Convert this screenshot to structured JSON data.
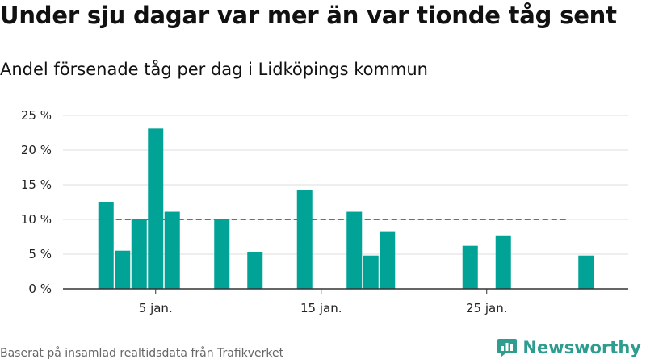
{
  "header": {
    "title": "Under sju dagar var mer än var tionde tåg sent",
    "subtitle": "Andel försenade tåg per dag i Lidköpings kommun"
  },
  "footer": {
    "source": "Baserat på insamlad realtidsdata från Trafikverket",
    "brand": "Newsworthy"
  },
  "colors": {
    "bar": "#00a396",
    "reference_line": "#6f6f6f",
    "grid": "#dedede",
    "axis": "#333333",
    "brand": "#2e9c8e"
  },
  "icons": {
    "brand_logo": "newsworthy-logo-icon"
  },
  "chart_data": {
    "type": "bar",
    "title": "Andel försenade tåg per dag i Lidköpings kommun",
    "xlabel": "",
    "ylabel": "",
    "unit": "%",
    "x_domain": [
      1,
      31
    ],
    "ylim": [
      0,
      25
    ],
    "yticks": [
      0,
      5,
      10,
      15,
      20,
      25
    ],
    "ytick_labels": [
      "0 %",
      "5 %",
      "10 %",
      "15 %",
      "20 %",
      "25 %"
    ],
    "xticks": [
      5,
      15,
      25
    ],
    "xtick_labels": [
      "5 jan.",
      "15 jan.",
      "25 jan."
    ],
    "grid": true,
    "reference_line": {
      "y": 10,
      "x_start": 2,
      "x_end": 28,
      "style": "dashed"
    },
    "points": [
      {
        "day": 2,
        "value": 12.5
      },
      {
        "day": 3,
        "value": 5.5
      },
      {
        "day": 4,
        "value": 10.0
      },
      {
        "day": 5,
        "value": 23.1
      },
      {
        "day": 6,
        "value": 11.1
      },
      {
        "day": 9,
        "value": 10.0
      },
      {
        "day": 11,
        "value": 5.3
      },
      {
        "day": 14,
        "value": 14.3
      },
      {
        "day": 17,
        "value": 11.1
      },
      {
        "day": 18,
        "value": 4.8
      },
      {
        "day": 19,
        "value": 8.3
      },
      {
        "day": 24,
        "value": 6.2
      },
      {
        "day": 26,
        "value": 7.7
      },
      {
        "day": 31,
        "value": 4.8
      }
    ]
  }
}
